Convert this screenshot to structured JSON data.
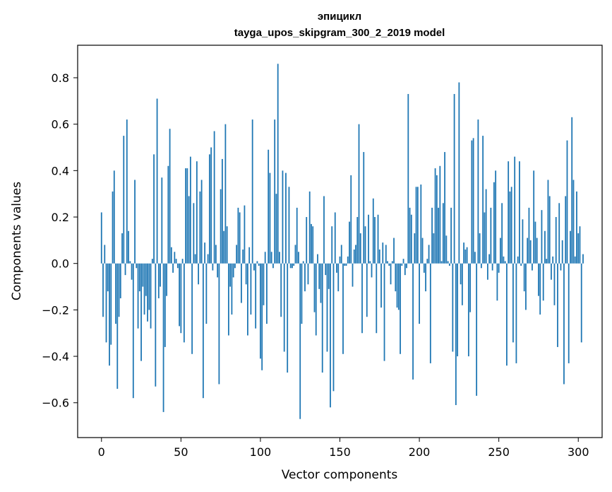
{
  "chart_data": {
    "type": "bar",
    "title": "эпицикл",
    "subtitle": "tayga_upos_skipgram_300_2_2019 model",
    "xlabel": "Vector components",
    "ylabel": "Components values",
    "xlim": [
      -15,
      315
    ],
    "ylim": [
      -0.75,
      0.94
    ],
    "xticks": [
      0,
      50,
      100,
      150,
      200,
      250,
      300
    ],
    "xtick_labels": [
      "0",
      "50",
      "100",
      "150",
      "200",
      "250",
      "300"
    ],
    "yticks": [
      -0.6,
      -0.4,
      -0.2,
      0.0,
      0.2,
      0.4,
      0.6,
      0.8
    ],
    "ytick_labels": [
      "−0.6",
      "−0.4",
      "−0.2",
      "0.0",
      "0.2",
      "0.4",
      "0.6",
      "0.8"
    ],
    "grid": false,
    "bar_color": "#1f77b4",
    "x_start": 0,
    "values": [
      0.22,
      -0.23,
      0.08,
      -0.34,
      -0.12,
      -0.44,
      -0.35,
      0.31,
      0.4,
      -0.26,
      -0.54,
      -0.23,
      -0.15,
      0.13,
      0.55,
      -0.05,
      0.62,
      0.14,
      0.01,
      -0.07,
      -0.58,
      0.36,
      -0.02,
      -0.28,
      -0.12,
      -0.42,
      -0.1,
      -0.22,
      -0.14,
      -0.25,
      -0.2,
      -0.28,
      0.02,
      0.47,
      -0.53,
      0.71,
      -0.15,
      -0.1,
      0.37,
      -0.64,
      -0.36,
      -0.14,
      0.42,
      0.58,
      0.07,
      -0.04,
      0.05,
      0.02,
      -0.02,
      -0.27,
      -0.3,
      0.02,
      -0.34,
      0.41,
      0.41,
      0.29,
      0.46,
      -0.39,
      0.26,
      0.04,
      0.44,
      -0.09,
      0.31,
      0.36,
      -0.58,
      0.09,
      -0.26,
      0.04,
      0.47,
      0.5,
      -0.03,
      0.57,
      0.08,
      -0.06,
      -0.52,
      0.32,
      0.45,
      0.14,
      0.6,
      0.16,
      -0.31,
      -0.1,
      -0.22,
      -0.06,
      -0.02,
      0.08,
      0.24,
      0.22,
      -0.17,
      0.06,
      0.25,
      -0.09,
      -0.31,
      0.07,
      -0.22,
      0.62,
      -0.03,
      -0.28,
      0.01,
      -0.01,
      -0.41,
      -0.46,
      -0.18,
      0.05,
      -0.26,
      0.49,
      0.39,
      0.05,
      -0.02,
      0.62,
      0.3,
      0.86,
      0.05,
      -0.23,
      0.4,
      -0.38,
      0.39,
      -0.47,
      0.33,
      -0.02,
      -0.02,
      -0.01,
      0.08,
      0.24,
      0.05,
      -0.67,
      -0.26,
      0.01,
      -0.12,
      0.2,
      -0.09,
      0.31,
      0.17,
      0.16,
      -0.21,
      -0.31,
      0.04,
      -0.11,
      -0.17,
      -0.47,
      0.29,
      -0.05,
      -0.38,
      -0.11,
      -0.62,
      0.16,
      -0.55,
      0.22,
      -0.04,
      -0.12,
      0.03,
      0.08,
      -0.39,
      -0.01,
      -0.01,
      0.03,
      0.18,
      0.38,
      -0.1,
      0.06,
      0.08,
      0.2,
      0.6,
      0.13,
      -0.3,
      0.48,
      0.16,
      -0.23,
      0.21,
      0.01,
      -0.06,
      0.28,
      0.2,
      -0.3,
      0.21,
      0.06,
      -0.19,
      0.09,
      -0.42,
      0.08,
      0.01,
      -0.01,
      -0.09,
      0.01,
      0.11,
      -0.12,
      -0.19,
      -0.2,
      -0.39,
      -0.01,
      0.02,
      -0.05,
      -0.02,
      0.73,
      0.24,
      0.21,
      -0.5,
      0.13,
      0.33,
      0.33,
      -0.26,
      0.34,
      0.11,
      -0.04,
      -0.12,
      0.02,
      0.08,
      -0.43,
      0.24,
      0.13,
      0.41,
      0.38,
      0.24,
      0.42,
      0.01,
      0.26,
      0.48,
      0.12,
      0.01,
      -0.01,
      0.24,
      -0.38,
      0.73,
      -0.61,
      -0.4,
      0.78,
      -0.09,
      -0.18,
      0.09,
      0.06,
      0.07,
      -0.4,
      -0.21,
      0.53,
      0.54,
      0.05,
      -0.57,
      0.62,
      0.13,
      -0.02,
      0.55,
      0.22,
      0.32,
      -0.07,
      0.04,
      0.24,
      -0.03,
      0.35,
      0.4,
      -0.16,
      -0.04,
      0.11,
      0.26,
      0.03,
      0.01,
      -0.44,
      0.44,
      0.31,
      0.33,
      -0.34,
      0.46,
      -0.43,
      0.03,
      0.44,
      -0.01,
      0.19,
      -0.12,
      -0.2,
      0.11,
      0.24,
      0.1,
      -0.03,
      0.4,
      0.18,
      0.11,
      -0.14,
      -0.22,
      0.23,
      -0.16,
      0.14,
      0.02,
      0.36,
      0.29,
      -0.07,
      0.03,
      -0.18,
      0.2,
      -0.36,
      0.26,
      -0.03,
      0.1,
      -0.52,
      0.29,
      0.53,
      -0.43,
      0.14,
      0.63,
      0.36,
      0.03,
      0.31,
      0.13,
      0.16,
      -0.34,
      0.04
    ]
  }
}
